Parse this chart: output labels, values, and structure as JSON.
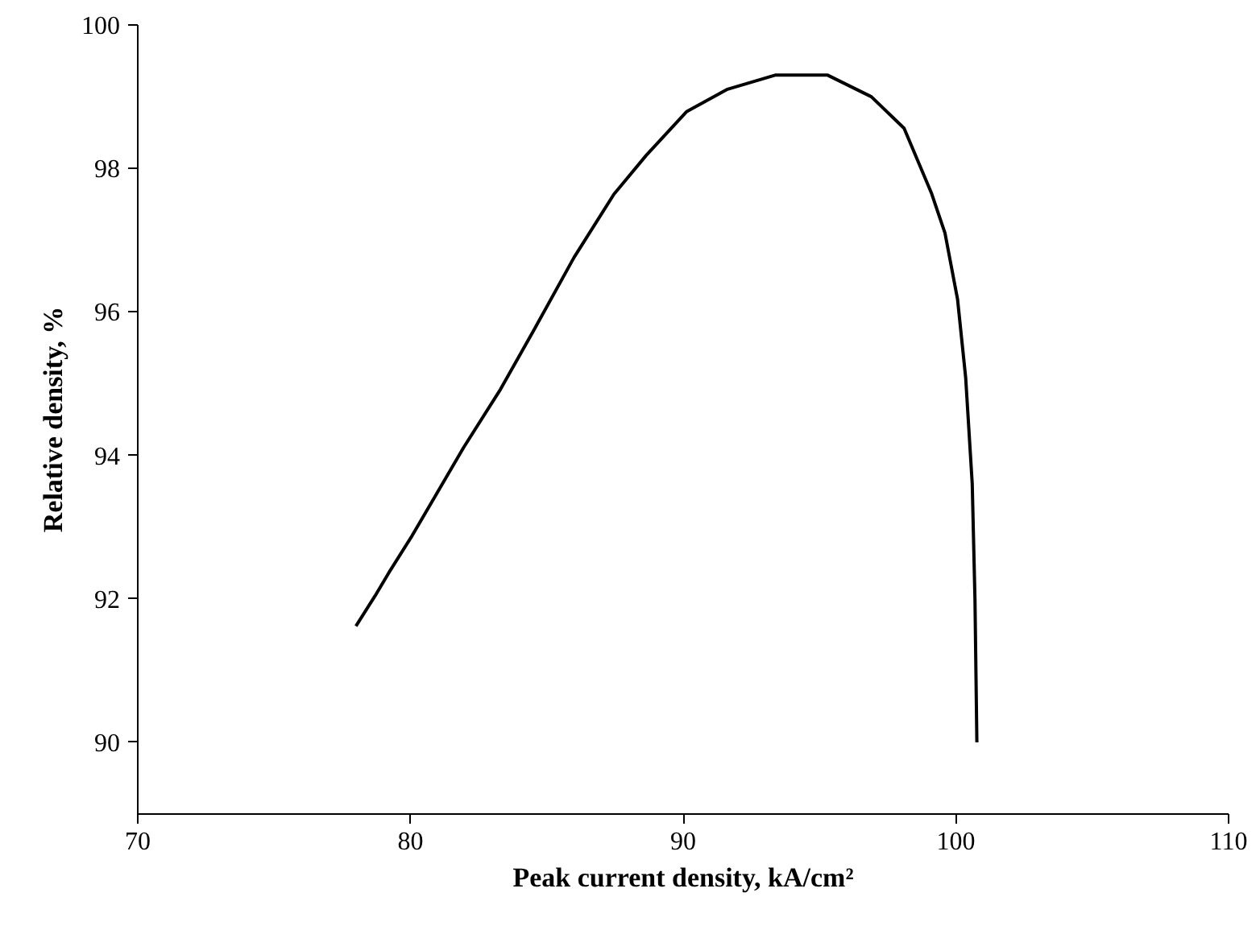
{
  "chart_data": {
    "type": "line",
    "xlabel": "Peak current density, kA/cm²",
    "ylabel": "Relative density, %",
    "x": [
      78.0,
      78.7,
      79.2,
      80.06,
      80.95,
      81.95,
      83.3,
      84.5,
      86.0,
      87.46,
      88.64,
      90.12,
      91.6,
      93.37,
      95.3,
      96.9,
      98.1,
      99.1,
      99.6,
      100.06,
      100.36,
      100.6,
      100.7,
      100.77
    ],
    "series": [
      {
        "color": "#000000",
        "values": [
          91.62,
          92.04,
          92.36,
          92.88,
          93.46,
          94.11,
          94.92,
          95.73,
          96.76,
          97.64,
          98.18,
          98.79,
          99.1,
          99.3,
          99.3,
          99.0,
          98.56,
          97.66,
          97.1,
          96.18,
          95.08,
          93.6,
          92.0,
          90.0
        ]
      }
    ],
    "xlim": [
      70,
      110
    ],
    "xticks": [
      70,
      80,
      90,
      100,
      110
    ],
    "ylim": [
      89,
      100
    ],
    "yticks": [
      90,
      92,
      94,
      96,
      98,
      100
    ],
    "grid": false,
    "marker": "none",
    "line_style": "solid"
  }
}
